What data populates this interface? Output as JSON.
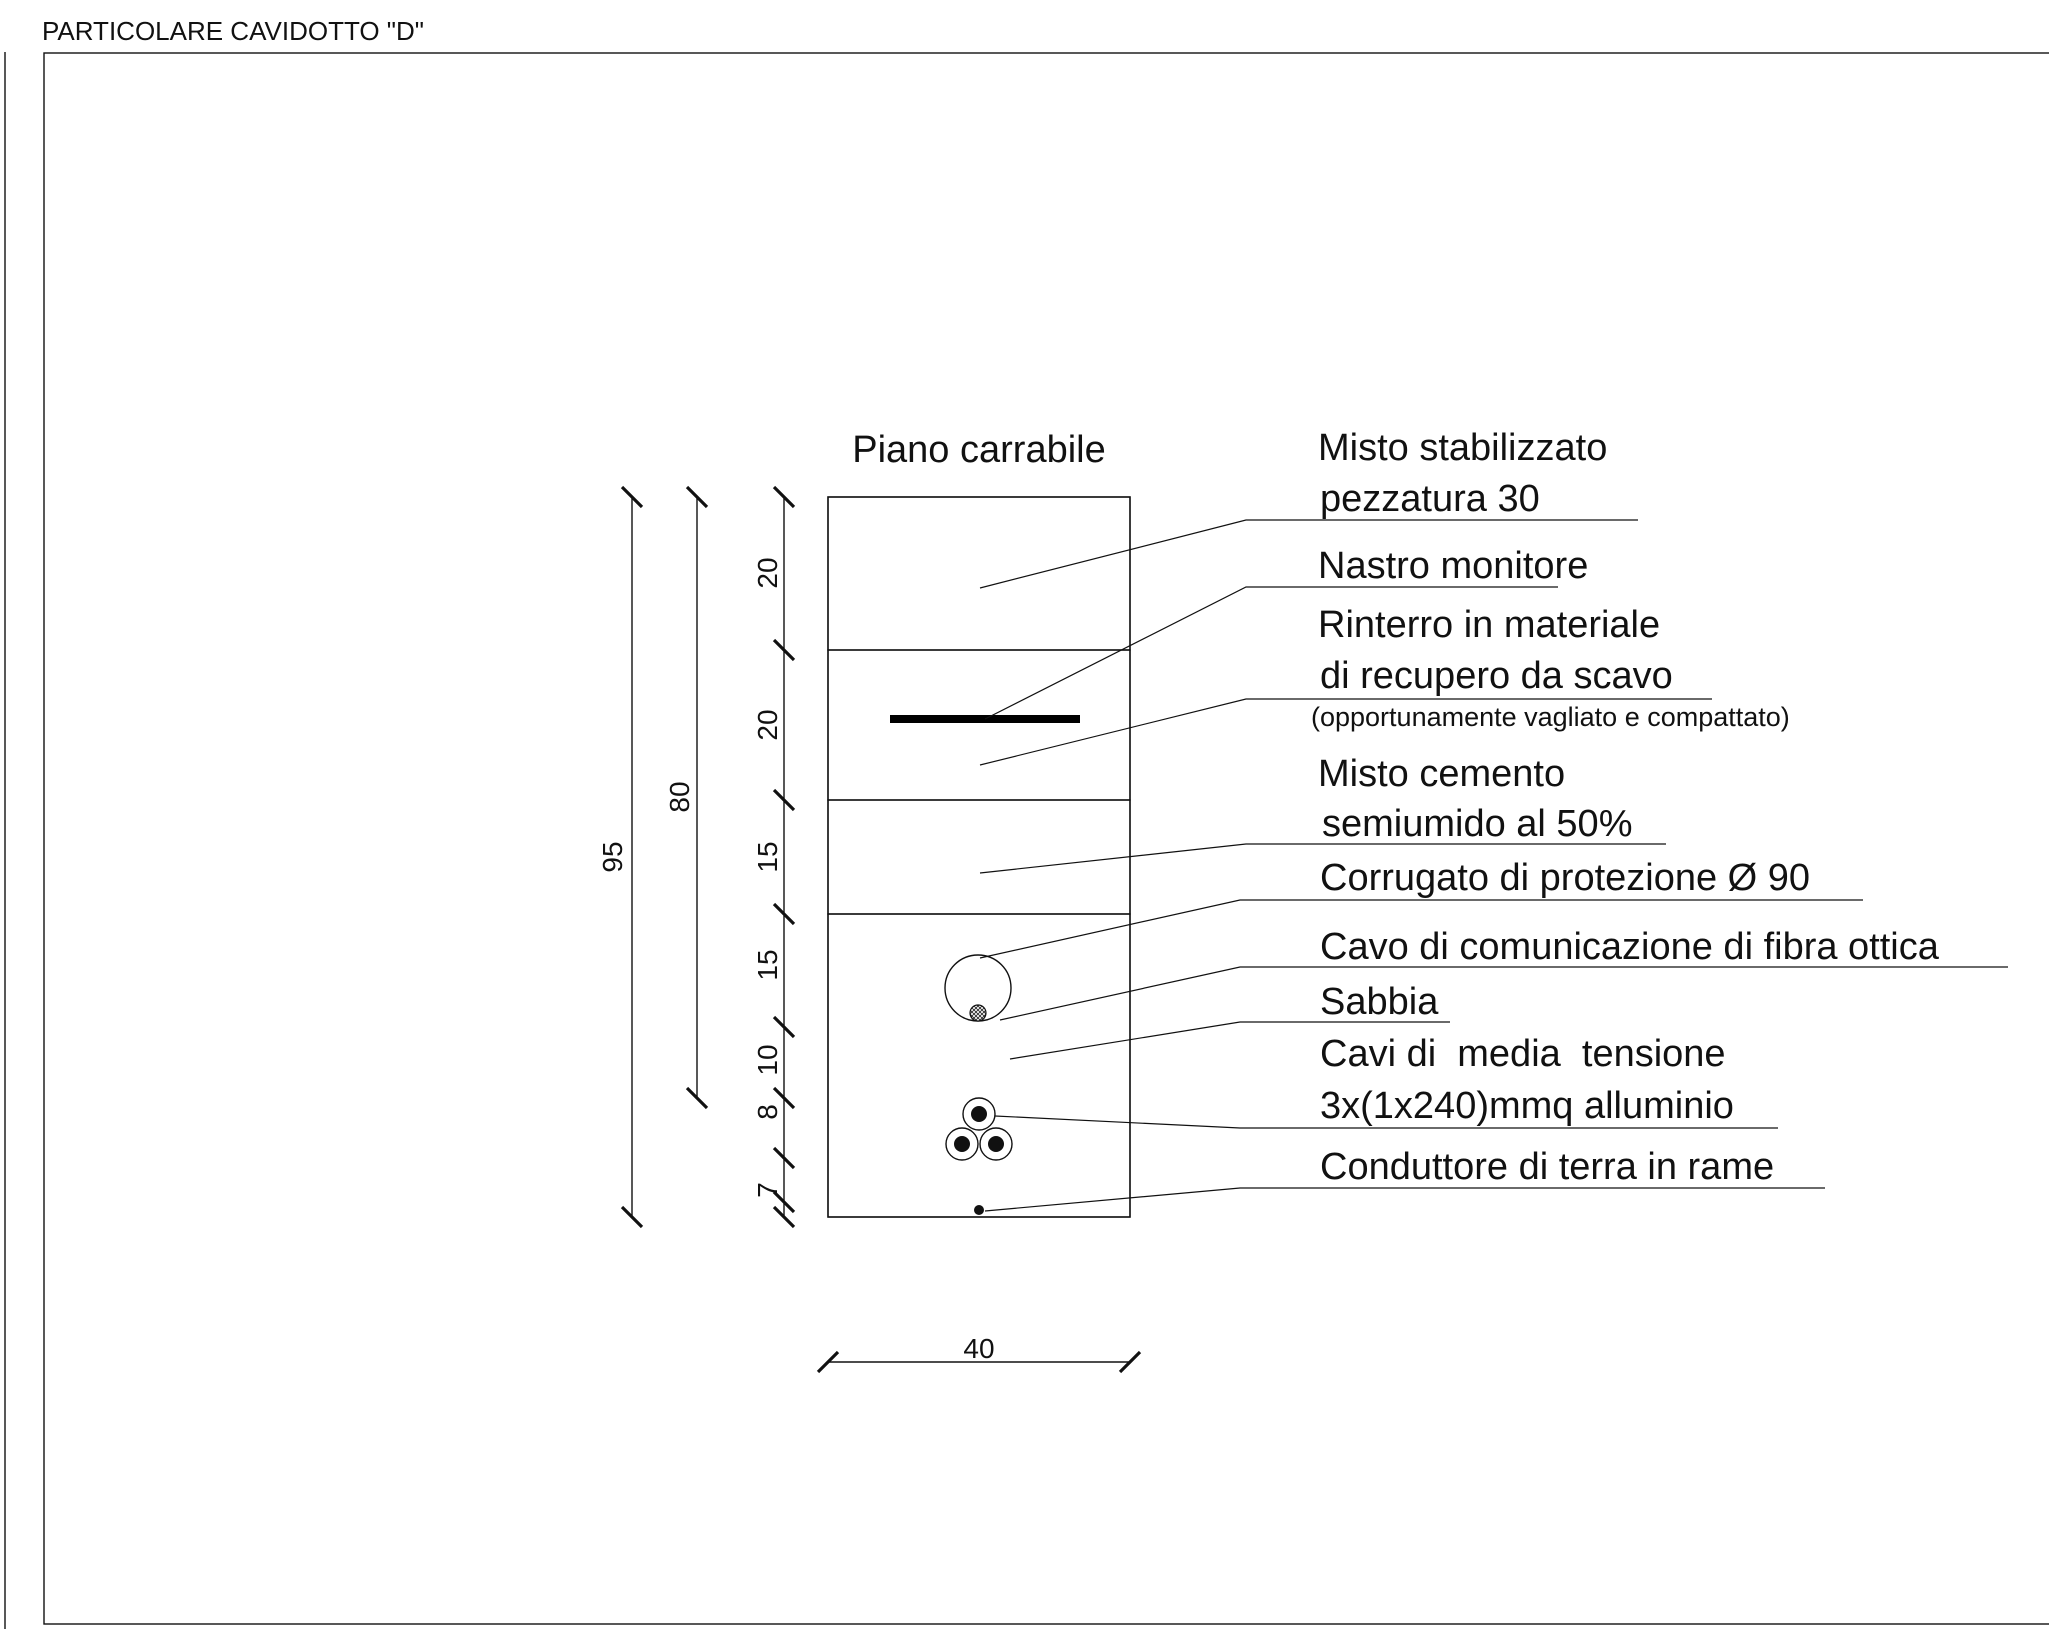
{
  "title": "PARTICOLARE CAVIDOTTO \"D\"",
  "surface_label": "Piano carrabile",
  "dimensions": {
    "total_depth": "95",
    "depth_to_cables": "80",
    "width": "40",
    "layer_thicknesses": [
      "20",
      "20",
      "15",
      "15",
      "10",
      "8",
      "7"
    ]
  },
  "labels": {
    "misto_stabilizzato": [
      "Misto stabilizzato",
      "pezzatura 30"
    ],
    "nastro_monitore": "Nastro monitore",
    "rinterro": [
      "Rinterro in materiale",
      "di recupero da scavo"
    ],
    "rinterro_note": "(opportunamente vagliato e compattato)",
    "misto_cemento": [
      "Misto cemento",
      "semiumido al 50%"
    ],
    "corrugato": "Corrugato di protezione Ø 90",
    "fibra_ottica": "Cavo di comunicazione di fibra ottica",
    "sabbia": "Sabbia",
    "cavi_mt": [
      "Cavi di  media  tensione",
      "3x(1x240)mmq alluminio"
    ],
    "conduttore_terra": "Conduttore di terra in rame"
  }
}
